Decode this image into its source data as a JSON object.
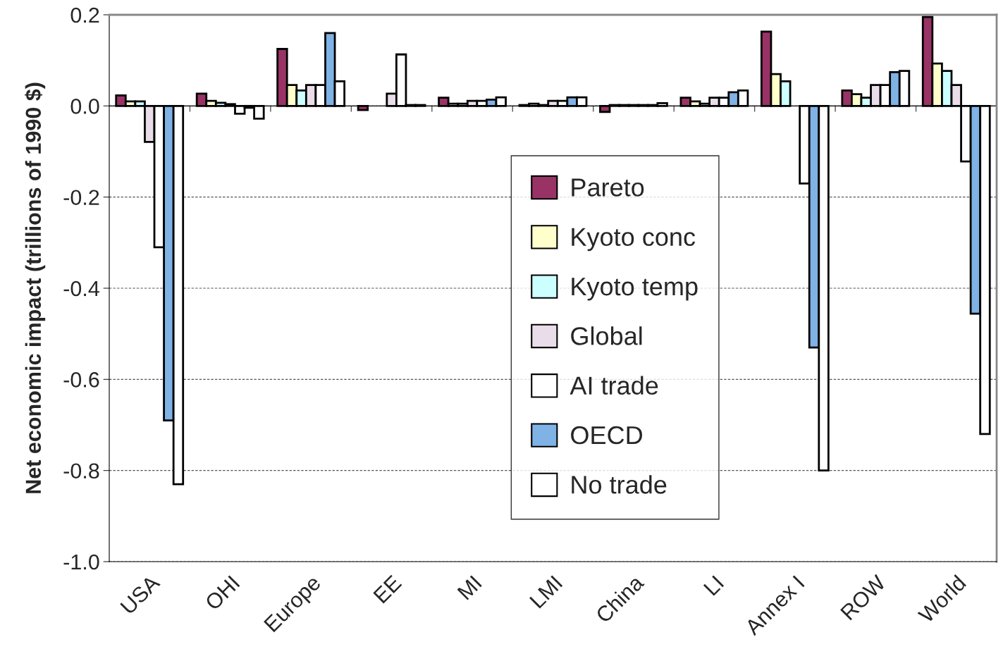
{
  "chart_data": {
    "type": "bar",
    "ylabel": "Net economic impact (trillions of 1990 $)",
    "categories": [
      "USA",
      "OHI",
      "Europe",
      "EE",
      "MI",
      "LMI",
      "China",
      "LI",
      "Annex I",
      "ROW",
      "World"
    ],
    "series": [
      {
        "name": "Pareto",
        "color": "#993366",
        "values": [
          0.023,
          0.027,
          0.125,
          -0.009,
          0.018,
          0.002,
          -0.013,
          0.018,
          0.163,
          0.034,
          0.195
        ]
      },
      {
        "name": "Kyoto conc",
        "color": "#ffffcc",
        "values": [
          0.01,
          0.011,
          0.046,
          null,
          0.005,
          0.005,
          0.002,
          0.01,
          0.07,
          0.026,
          0.093
        ]
      },
      {
        "name": "Kyoto temp",
        "color": "#ccffff",
        "values": [
          0.01,
          0.007,
          0.034,
          null,
          0.005,
          0.002,
          0.002,
          0.005,
          0.054,
          0.018,
          0.077
        ]
      },
      {
        "name": "Global",
        "color": "#eaddea",
        "values": [
          -0.079,
          0.004,
          0.046,
          0.027,
          0.011,
          0.011,
          0.002,
          0.018,
          null,
          0.046,
          0.046
        ]
      },
      {
        "name": "AI trade",
        "color": "#ffffff",
        "values": [
          -0.31,
          -0.017,
          0.046,
          0.113,
          0.011,
          0.011,
          0.002,
          0.018,
          -0.17,
          0.046,
          -0.122
        ]
      },
      {
        "name": "OECD",
        "color": "#7fb2e5",
        "values": [
          -0.69,
          -0.004,
          0.16,
          0.002,
          0.014,
          0.019,
          0.002,
          0.03,
          -0.53,
          0.074,
          -0.456
        ]
      },
      {
        "name": "No trade",
        "color": "#ffffff",
        "values": [
          -0.83,
          -0.028,
          0.054,
          0.002,
          0.019,
          0.019,
          0.006,
          0.034,
          -0.8,
          0.077,
          -0.72
        ]
      }
    ],
    "ylim": [
      -1.0,
      0.2
    ],
    "yticks": [
      {
        "value": 0.2,
        "label": "0.2"
      },
      {
        "value": 0.0,
        "label": "0.0"
      },
      {
        "value": -0.2,
        "label": "-0.2"
      },
      {
        "value": -0.4,
        "label": "-0.4"
      },
      {
        "value": -0.6,
        "label": "-0.6"
      },
      {
        "value": -0.8,
        "label": "-0.8"
      },
      {
        "value": -1.0,
        "label": "-1.0"
      }
    ],
    "grid": "y",
    "legend": "center"
  }
}
